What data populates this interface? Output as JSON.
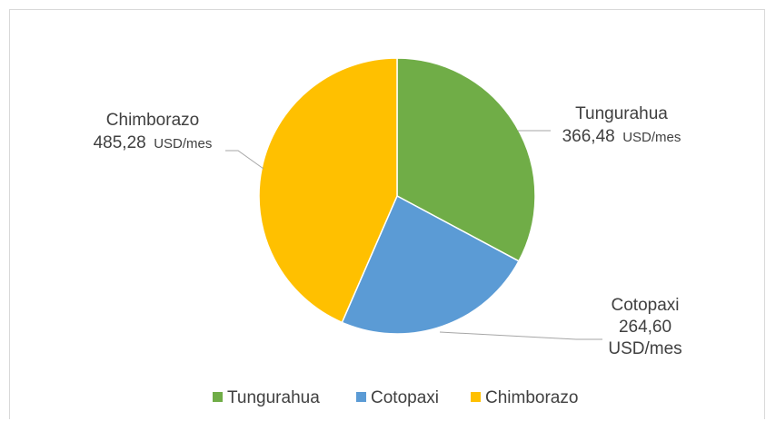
{
  "chart_data": {
    "type": "pie",
    "categories": [
      "Tungurahua",
      "Cotopaxi",
      "Chimborazo"
    ],
    "values": [
      366.48,
      264.6,
      485.28
    ],
    "value_labels": [
      "366,48",
      "264,60",
      "485,28"
    ],
    "unit": "USD/mes",
    "colors": [
      "#70ad47",
      "#5b9bd5",
      "#ffc000"
    ],
    "legend_position": "bottom",
    "title": ""
  }
}
